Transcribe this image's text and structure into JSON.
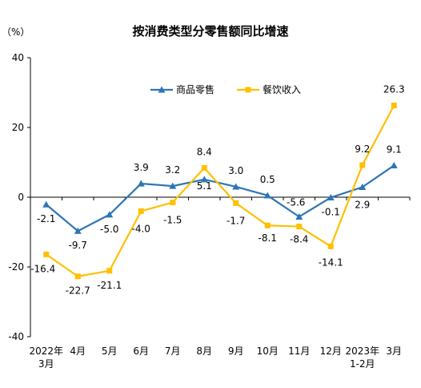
{
  "chart_data": {
    "type": "line",
    "title": "按消费类型分零售额同比增速",
    "unit_label": "（%）",
    "categories": [
      [
        "2022年",
        "3月"
      ],
      [
        "4月"
      ],
      [
        "5月"
      ],
      [
        "6月"
      ],
      [
        "7月"
      ],
      [
        "8月"
      ],
      [
        "9月"
      ],
      [
        "10月"
      ],
      [
        "11月"
      ],
      [
        "12月"
      ],
      [
        "2023年",
        "1-2月"
      ],
      [
        "3月"
      ]
    ],
    "series": [
      {
        "name": "商品零售",
        "color": "#2E75B6",
        "marker": "triangle",
        "values": [
          -2.1,
          -9.7,
          -5.0,
          3.9,
          3.2,
          5.1,
          3.0,
          0.5,
          -5.6,
          -0.1,
          2.9,
          9.1
        ],
        "labels": [
          "-2.1",
          "-9.7",
          "-5.0",
          "3.9",
          "3.2",
          "5.1",
          "3.0",
          "0.5",
          "-5.6",
          "-0.1",
          "2.9",
          "9.1"
        ]
      },
      {
        "name": "餐饮收入",
        "color": "#FFC000",
        "marker": "square",
        "values": [
          -16.4,
          -22.7,
          -21.1,
          -4.0,
          -1.5,
          8.4,
          -1.7,
          -8.1,
          -8.4,
          -14.1,
          9.2,
          26.3
        ],
        "labels": [
          "-16.4",
          "-22.7",
          "-21.1",
          "-4.0",
          "-1.5",
          "8.4",
          "-1.7",
          "-8.1",
          "-8.4",
          "-14.1",
          "9.2",
          "26.3"
        ]
      }
    ],
    "y_ticks": [
      "40",
      "20",
      "0",
      "-20",
      "-40"
    ],
    "ylim": [
      -40,
      40
    ],
    "grid": false,
    "legend_position": "top-center"
  }
}
